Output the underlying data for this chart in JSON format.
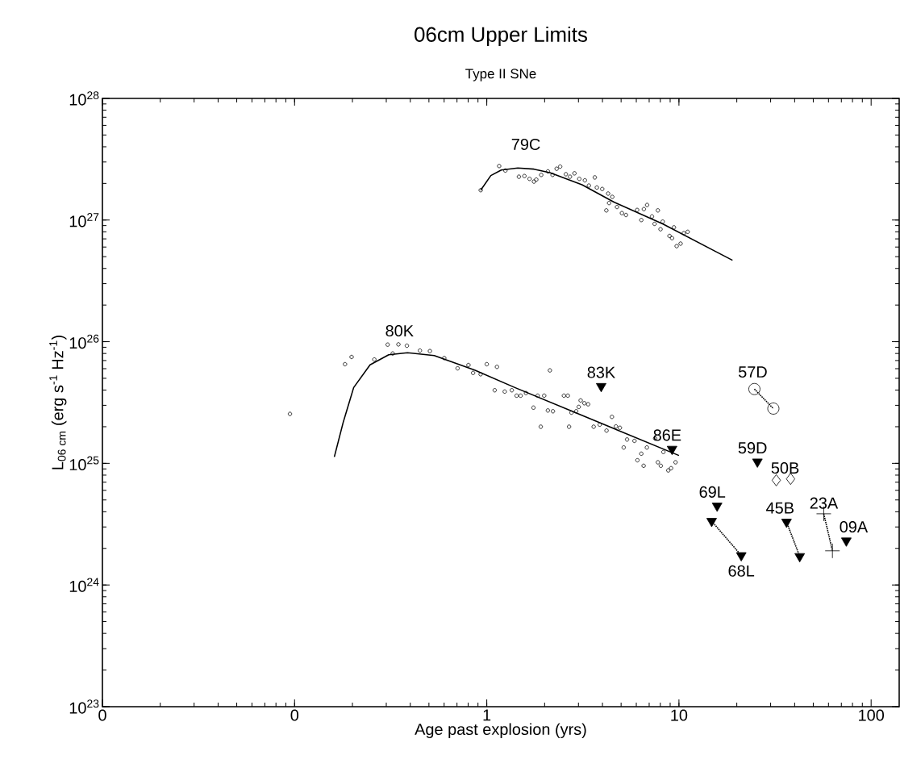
{
  "chart_data": {
    "type": "scatter",
    "title": "06cm Upper Limits",
    "subtitle": "Type II SNe",
    "xlabel": "Age past explosion (yrs)",
    "ylabel": "L$_{06 cm}$ (erg s$^{-1}$ Hz$^{-1}$)",
    "log": "xy",
    "grid": false,
    "xlim": [
      0.01,
      140
    ],
    "ylim": [
      1e+23,
      1e+28
    ],
    "xticks": [
      {
        "value": 0.01,
        "label": "0"
      },
      {
        "value": 0.1,
        "label": "0"
      },
      1,
      10,
      100
    ],
    "yticks": [
      {
        "value": 1e+23,
        "label": "10$^{23}$"
      },
      {
        "value": 1e+24,
        "label": "10$^{24}$"
      },
      {
        "value": 1e+25,
        "label": "10$^{25}$"
      },
      {
        "value": 1e+26,
        "label": "10$^{26}$"
      },
      {
        "value": 1e+27,
        "label": "10$^{27}$"
      },
      {
        "value": 1e+28,
        "label": "10$^{28}$"
      }
    ],
    "series": [
      {
        "marker": "circle",
        "color": "#000000",
        "x": [
          0.93,
          1.16,
          1.25,
          1.47,
          1.57,
          1.67,
          1.76,
          1.81,
          1.92,
          2.08,
          2.2,
          2.31,
          2.41,
          2.58,
          2.71,
          2.86,
          3.03,
          3.24,
          3.4,
          3.65,
          3.74,
          3.99,
          4.28,
          4.5,
          4.19,
          4.33,
          4.76,
          5.05,
          5.3,
          6.06,
          6.37,
          6.57,
          6.83,
          7.24,
          7.47,
          7.77,
          8.02,
          8.23,
          8.93,
          9.21,
          9.42,
          9.73,
          10.2,
          10.6,
          11.1
        ],
        "values": [
          1.76e+27,
          2.78e+27,
          2.55e+27,
          2.27e+27,
          2.3e+27,
          2.18e+27,
          2.07e+27,
          2.15e+27,
          2.35e+27,
          2.51e+27,
          2.35e+27,
          2.64e+27,
          2.75e+27,
          2.38e+27,
          2.27e+27,
          2.42e+27,
          2.18e+27,
          2.12e+27,
          1.92e+27,
          2.24e+27,
          1.85e+27,
          1.8e+27,
          1.65e+27,
          1.55e+27,
          1.2e+27,
          1.38e+27,
          1.28e+27,
          1.14e+27,
          1.1e+27,
          1.21e+27,
          1e+27,
          1.23e+27,
          1.33e+27,
          1.07e+27,
          9.3e+26,
          1.2e+27,
          8.4e+26,
          9.7e+26,
          7.4e+26,
          7.1e+26,
          8.7e+26,
          6.1e+26,
          6.4e+26,
          7.8e+26,
          8e+26
        ]
      },
      {
        "type": "line",
        "marker": "none",
        "color": "#000000",
        "x": [
          0.93,
          1.05,
          1.19,
          1.45,
          1.76,
          2.13,
          3.13,
          4.61,
          8.23,
          15.7,
          19
        ],
        "values": [
          1.76e+27,
          2.32e+27,
          2.58e+27,
          2.68e+27,
          2.62e+27,
          2.45e+27,
          1.95e+27,
          1.4e+27,
          9.3e+26,
          5.46e+26,
          4.67e+26
        ]
      },
      {
        "marker": "circle",
        "color": "#000000",
        "x": [
          0.0946,
          0.183,
          0.198,
          0.26,
          0.305,
          0.324,
          0.347,
          0.384,
          0.449,
          0.506,
          0.601,
          0.705,
          0.803,
          0.849,
          0.929,
          1.0,
          1.13,
          1.1,
          1.24,
          1.35,
          1.43,
          1.5,
          1.6,
          1.75,
          1.84,
          1.91,
          1.99,
          2.08,
          2.13,
          2.21,
          2.52,
          2.64,
          2.68,
          2.76,
          2.92,
          3.01,
          3.08,
          3.22,
          3.37,
          3.6,
          3.87,
          4.2,
          4.48,
          4.7,
          4.93,
          5.16,
          5.37,
          5.87,
          6.08,
          6.37,
          6.55,
          6.81,
          7.52,
          7.77,
          8.05,
          8.3,
          8.8,
          9.1,
          9.6
        ],
        "values": [
          2.55e+25,
          6.53e+25,
          7.49e+25,
          7.14e+25,
          9.46e+25,
          8e+25,
          9.5e+25,
          9.27e+25,
          8.45e+25,
          8.37e+25,
          7.34e+25,
          6.04e+25,
          6.43e+25,
          5.54e+25,
          5.4e+25,
          6.53e+25,
          6.21e+25,
          3.99e+25,
          3.89e+25,
          3.99e+25,
          3.6e+25,
          3.6e+25,
          3.78e+25,
          2.87e+25,
          3.6e+25,
          2e+25,
          3.6e+25,
          2.72e+25,
          5.81e+25,
          2.68e+25,
          3.6e+25,
          3.6e+25,
          2e+25,
          2.61e+25,
          2.68e+25,
          2.91e+25,
          3.29e+25,
          3.12e+25,
          3.06e+25,
          2e+25,
          2.08e+25,
          1.86e+25,
          2.41e+25,
          2.01e+25,
          1.96e+25,
          1.35e+25,
          1.57e+25,
          1.53e+25,
          1.06e+25,
          1.2e+25,
          9.55e+24,
          1.35e+25,
          1.6e+25,
          1.02e+25,
          9.55e+24,
          1.24e+25,
          8.75e+24,
          9.12e+24,
          1.02e+25
        ]
      },
      {
        "type": "line",
        "marker": "none",
        "color": "#000000",
        "x": [
          0.161,
          0.179,
          0.203,
          0.247,
          0.309,
          0.387,
          0.533,
          0.865,
          1.4,
          10.0
        ],
        "values": [
          1.13e+25,
          2.17e+25,
          4.2e+25,
          6.46e+25,
          7.8e+25,
          8.11e+25,
          7.7e+25,
          5.84e+25,
          4.2e+25,
          1.16e+25
        ]
      },
      {
        "marker": "triangle",
        "color": "#000000",
        "x": [
          3.94
        ],
        "values": [
          4.3e+25
        ]
      },
      {
        "marker": "triangle",
        "color": "#000000",
        "x": [
          9.21
        ],
        "values": [
          1.31e+25
        ]
      },
      {
        "type": "line",
        "marker": "circle",
        "line_style": "dotted",
        "color": "#000000",
        "x": [
          24.7,
          31.0
        ],
        "values": [
          4.08e+25,
          2.82e+25
        ]
      },
      {
        "marker": "triangle",
        "color": "#000000",
        "x": [
          25.6
        ],
        "values": [
          1.03e+25
        ]
      },
      {
        "marker": "diamond",
        "color": "#000000",
        "x": [
          32.1,
          38.1
        ],
        "values": [
          7.26e+24,
          7.45e+24
        ]
      },
      {
        "marker": "triangle",
        "color": "#000000",
        "x": [
          15.8
        ],
        "values": [
          4.47e+24
        ]
      },
      {
        "type": "line",
        "marker": "triangle",
        "line_style": "dotted",
        "color": "#000000",
        "x": [
          14.8,
          21.1
        ],
        "values": [
          3.35e+24,
          1.75e+24
        ]
      },
      {
        "type": "line",
        "marker": "triangle",
        "line_style": "dotted",
        "color": "#000000",
        "x": [
          36.3,
          42.5
        ],
        "values": [
          3.3e+24,
          1.72e+24
        ]
      },
      {
        "type": "line",
        "marker": "cross",
        "line_style": "dotted",
        "color": "#000000",
        "x": [
          56.7,
          62.9
        ],
        "values": [
          3.85e+24,
          1.91e+24
        ]
      },
      {
        "marker": "triangle",
        "color": "#000000",
        "x": [
          74.3
        ],
        "values": [
          2.31e+24
        ]
      }
    ],
    "annotations": [
      {
        "text": "79C",
        "x": 1.45,
        "y": 2.68e+27
      },
      {
        "text": "80K",
        "x": 0.387,
        "y": 8.11e+25
      },
      {
        "text": "83K",
        "x": 3.94,
        "y": 4.3e+25
      },
      {
        "text": "86E",
        "x": 9.21,
        "y": 1.31e+25
      },
      {
        "text": "57D",
        "x": 24.7,
        "y": 4.08e+25
      },
      {
        "text": "59D",
        "x": 25.6,
        "y": 1.03e+25
      },
      {
        "text": "50B",
        "x": 32.1,
        "y": 7.26e+24
      },
      {
        "text": "69L",
        "x": 15.8,
        "y": 4.47e+24
      },
      {
        "text": "68L",
        "x": 21.1,
        "y": 1.75e+24
      },
      {
        "text": "45B",
        "x": 36.3,
        "y": 3.3e+24
      },
      {
        "text": "23A",
        "x": 56.7,
        "y": 3.85e+24
      },
      {
        "text": "09A",
        "x": 74.3,
        "y": 2.31e+24
      }
    ]
  }
}
